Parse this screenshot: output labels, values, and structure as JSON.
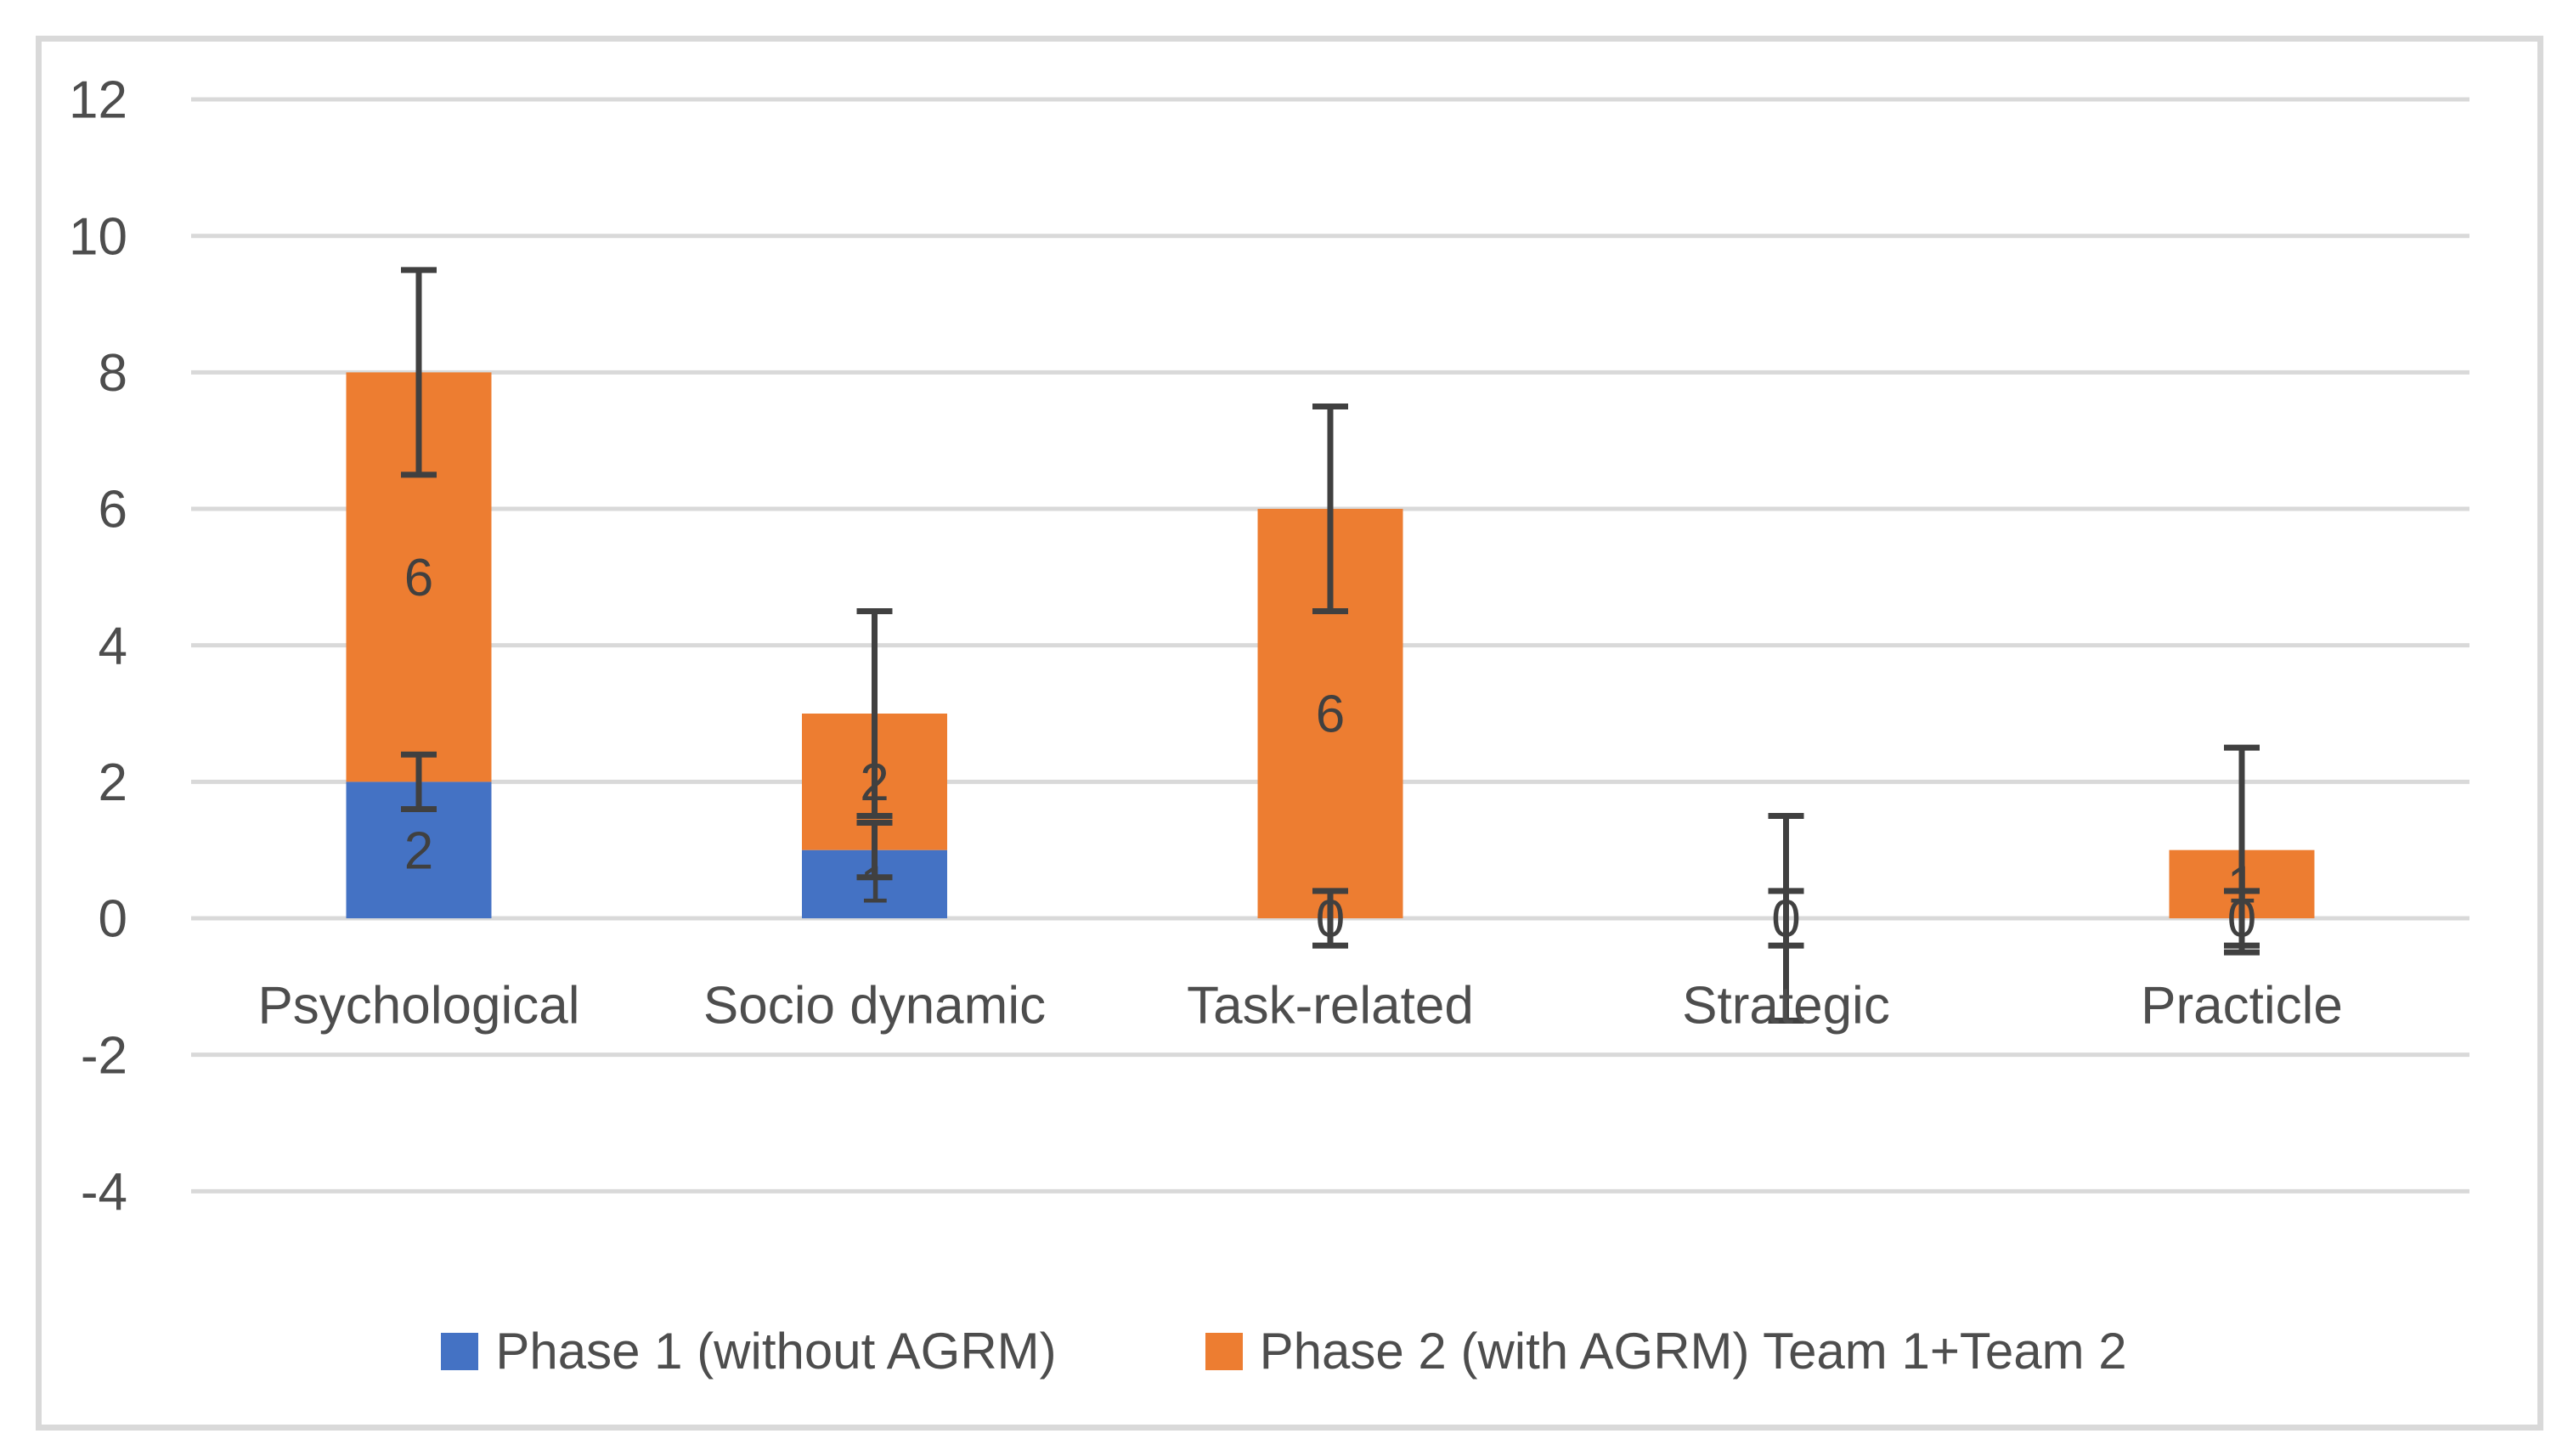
{
  "chart": {
    "background_color": "#ffffff",
    "frame_border_color": "#d9d9d9",
    "gridline_color": "#d9d9d9",
    "axis_text_color": "#4d4d4d",
    "data_label_color": "#404040",
    "error_bar_color": "#404040"
  },
  "chart_data": {
    "type": "bar",
    "stacked": true,
    "title": "",
    "xlabel": "",
    "ylabel": "",
    "categories": [
      "Psychological",
      "Socio dynamic",
      "Task-related",
      "Strategic",
      "Practicle"
    ],
    "series": [
      {
        "name": "Phase 1 (without AGRM)",
        "color": "#4472C4",
        "values": [
          2,
          1,
          0,
          0,
          0
        ],
        "data_labels": [
          "2",
          "1",
          "0",
          "0",
          "0"
        ],
        "error": 0.4
      },
      {
        "name": "Phase 2 (with AGRM) Team 1+Team 2",
        "color": "#ED7D31",
        "values": [
          6,
          2,
          6,
          0,
          1
        ],
        "data_labels": [
          "6",
          "2",
          "6",
          "",
          "1"
        ],
        "error": 1.5
      }
    ],
    "error_bar_note": "error bars centered on cumulative stack top of each series; phase1 ±0.4, phase2 ±1.5",
    "y_axis": {
      "min": -4,
      "max": 12,
      "tick_step": 2,
      "ticks": [
        12,
        10,
        8,
        6,
        4,
        2,
        0,
        -2,
        -4
      ]
    },
    "ylim": [
      -4,
      12
    ],
    "grid": true,
    "legend_position": "bottom"
  }
}
